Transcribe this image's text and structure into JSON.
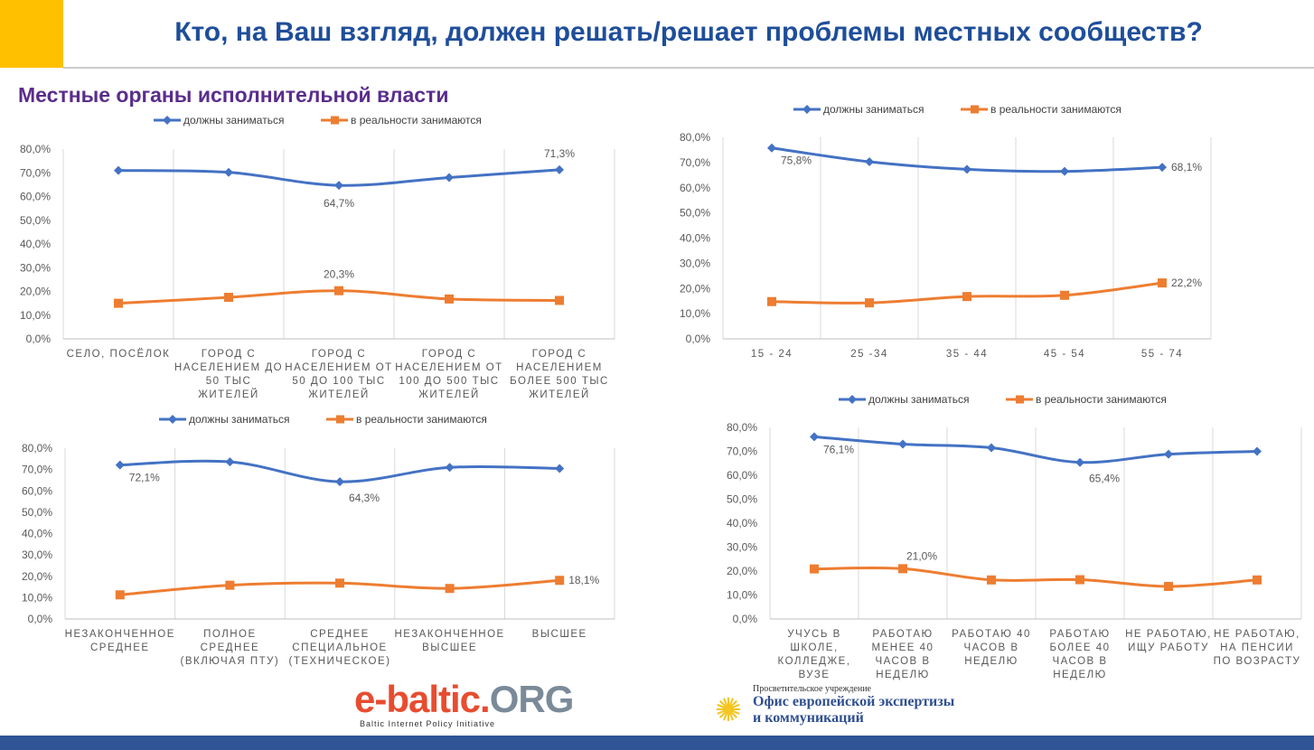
{
  "header": {
    "title": "Кто, на Ваш взгляд, должен решать/решает проблемы местных сообществ?",
    "subtitle": "Местные органы исполнительной власти"
  },
  "colors": {
    "should": "#4472c4",
    "actually": "#ed7d31",
    "accent": "#ffc000",
    "footer": "#2f5597"
  },
  "chart_data": [
    {
      "type": "line",
      "ylim": [
        0,
        80
      ],
      "yticks": [
        "0,0%",
        "10,0%",
        "20,0%",
        "30,0%",
        "40,0%",
        "50,0%",
        "60,0%",
        "70,0%",
        "80,0%"
      ],
      "legend": "top",
      "categories": [
        [
          "СЕЛО, ПОСЁЛОК"
        ],
        [
          "ГОРОД С",
          "НАСЕЛЕНИЕМ ДО",
          "50 ТЫС",
          "ЖИТЕЛЕЙ"
        ],
        [
          "ГОРОД С",
          "НАСЕЛЕНИЕМ ОТ",
          "50 ДО 100 ТЫС",
          "ЖИТЕЛЕЙ"
        ],
        [
          "ГОРОД С",
          "НАСЕЛЕНИЕМ ОТ",
          "100 ДО 500 ТЫС",
          "ЖИТЕЛЕЙ"
        ],
        [
          "ГОРОД С",
          "НАСЕЛЕНИЕМ",
          "БОЛЕЕ 500 ТЫС",
          "ЖИТЕЛЕЙ"
        ]
      ],
      "series": [
        {
          "name": "должны заниматься",
          "values": [
            71.0,
            70.2,
            64.7,
            68.0,
            71.3
          ],
          "labels": {
            "2": "64,7%",
            "4": "71,3%"
          }
        },
        {
          "name": "в реальности занимаются",
          "values": [
            15.0,
            17.5,
            20.3,
            16.8,
            16.2
          ],
          "labels": {
            "2": "20,3%"
          }
        }
      ]
    },
    {
      "type": "line",
      "ylim": [
        0,
        80
      ],
      "yticks": [
        "0,0%",
        "10,0%",
        "20,0%",
        "30,0%",
        "40,0%",
        "50,0%",
        "60,0%",
        "70,0%",
        "80,0%"
      ],
      "legend": "top",
      "categories": [
        [
          "15 - 24"
        ],
        [
          "25 -34"
        ],
        [
          "35 - 44"
        ],
        [
          "45 - 54"
        ],
        [
          "55 - 74"
        ]
      ],
      "series": [
        {
          "name": "должны заниматься",
          "values": [
            75.8,
            70.3,
            67.3,
            66.5,
            68.1
          ],
          "labels": {
            "0": "75,8%",
            "4": "68,1%"
          }
        },
        {
          "name": "в реальности занимаются",
          "values": [
            14.8,
            14.3,
            16.8,
            17.3,
            22.2
          ],
          "labels": {
            "4": "22,2%"
          }
        }
      ]
    },
    {
      "type": "line",
      "ylim": [
        0,
        80
      ],
      "yticks": [
        "0,0%",
        "10,0%",
        "20,0%",
        "30,0%",
        "40,0%",
        "50,0%",
        "60,0%",
        "70,0%",
        "80,0%"
      ],
      "legend": "top",
      "categories": [
        [
          "НЕЗАКОНЧЕННОЕ",
          "СРЕДНЕЕ"
        ],
        [
          "ПОЛНОЕ",
          "СРЕДНЕЕ",
          "(ВКЛЮЧАЯ ПТУ)"
        ],
        [
          "СРЕДНЕЕ",
          "СПЕЦИАЛЬНОЕ",
          "(ТЕХНИЧЕСКОЕ)"
        ],
        [
          "НЕЗАКОНЧЕННОЕ",
          "ВЫСШЕЕ"
        ],
        [
          "ВЫСШЕЕ"
        ]
      ],
      "series": [
        {
          "name": "должны заниматься",
          "values": [
            72.1,
            73.6,
            64.3,
            71.0,
            70.5
          ],
          "labels": {
            "0": "72,1%",
            "2": "64,3%"
          }
        },
        {
          "name": "в реальности занимаются",
          "values": [
            11.3,
            15.8,
            16.8,
            14.3,
            18.1
          ],
          "labels": {
            "4": "18,1%"
          }
        }
      ]
    },
    {
      "type": "line",
      "ylim": [
        0,
        80
      ],
      "yticks": [
        "0,0%",
        "10,0%",
        "20,0%",
        "30,0%",
        "40,0%",
        "50,0%",
        "60,0%",
        "70,0%",
        "80,0%"
      ],
      "legend": "top",
      "categories": [
        [
          "УЧУСЬ В",
          "ШКОЛЕ,",
          "КОЛЛЕДЖЕ,",
          "ВУЗЕ"
        ],
        [
          "РАБОТАЮ",
          "МЕНЕЕ 40",
          "ЧАСОВ В",
          "НЕДЕЛЮ"
        ],
        [
          "РАБОТАЮ 40",
          "ЧАСОВ В",
          "НЕДЕЛЮ"
        ],
        [
          "РАБОТАЮ",
          "БОЛЕЕ 40",
          "ЧАСОВ В",
          "НЕДЕЛЮ"
        ],
        [
          "НЕ РАБОТАЮ,",
          "ИЩУ РАБОТУ"
        ],
        [
          "НЕ РАБОТАЮ,",
          "НА ПЕНСИИ",
          "ПО ВОЗРАСТУ"
        ]
      ],
      "series": [
        {
          "name": "должны заниматься",
          "values": [
            76.1,
            73.0,
            71.5,
            65.4,
            68.8,
            70.0
          ],
          "labels": {
            "0": "76,1%",
            "3": "65,4%"
          }
        },
        {
          "name": "в реальности занимаются",
          "values": [
            20.9,
            21.0,
            16.3,
            16.4,
            13.6,
            16.3
          ],
          "labels": {
            "1": "21,0%"
          }
        }
      ]
    }
  ],
  "logos": {
    "ebaltic_main": "e-baltic.",
    "ebaltic_org": "ORG",
    "ebaltic_sub": "Baltic Internet Policy Initiative",
    "office_pre": "Просветительское учреждение",
    "office_line1": "Офис европейской экспертизы",
    "office_line2": "и коммуникаций"
  }
}
